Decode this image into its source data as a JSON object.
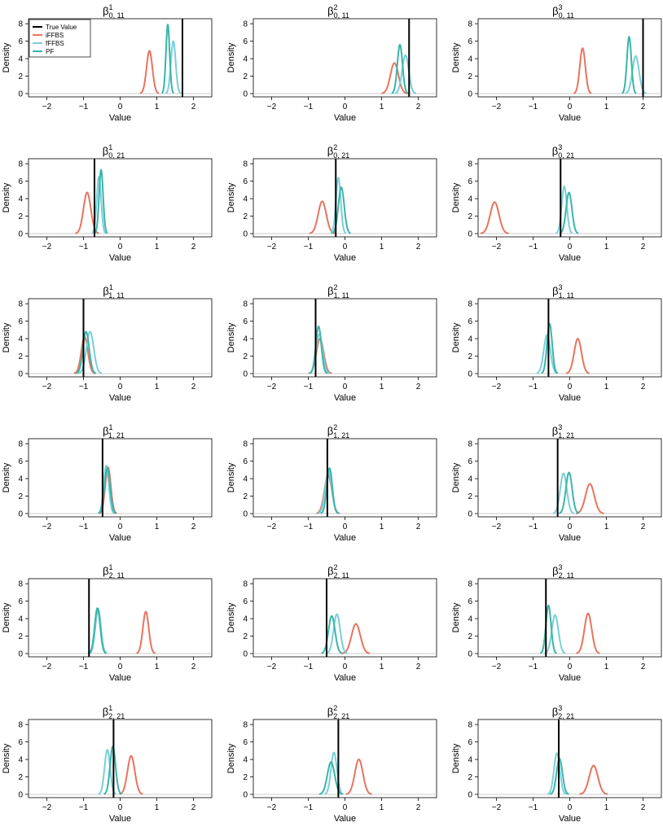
{
  "axis_defaults": {
    "xlabel": "Value",
    "ylabel": "Density",
    "xlim": [
      -2.5,
      2.5
    ],
    "ylim": [
      0,
      8.2
    ],
    "xticks": [
      -2,
      -1,
      0,
      1,
      2
    ],
    "yticks": [
      0,
      2,
      4,
      6,
      8
    ]
  },
  "legend": {
    "placement": "top-left",
    "entries": [
      {
        "label": "True Value",
        "color": "#000000"
      },
      {
        "label": "iFFBS",
        "color": "#e8735f"
      },
      {
        "label": "fFFBS",
        "color": "#79cfdb"
      },
      {
        "label": "PF",
        "color": "#3ab5a8"
      }
    ]
  },
  "chart_data": [
    {
      "type": "line",
      "title": {
        "base": "β",
        "sup": "1",
        "sub": "0, 11"
      },
      "true_value": 1.7,
      "series": [
        {
          "name": "iFFBS",
          "mean": 0.8,
          "sd": 0.08,
          "peak": 4.9
        },
        {
          "name": "fFFBS",
          "mean": 1.45,
          "sd": 0.065,
          "peak": 6.0
        },
        {
          "name": "PF",
          "mean": 1.3,
          "sd": 0.05,
          "peak": 7.9
        }
      ]
    },
    {
      "type": "line",
      "title": {
        "base": "β",
        "sup": "2",
        "sub": "0, 11"
      },
      "true_value": 1.75,
      "series": [
        {
          "name": "iFFBS",
          "mean": 1.35,
          "sd": 0.11,
          "peak": 3.5
        },
        {
          "name": "fFFBS",
          "mean": 1.65,
          "sd": 0.09,
          "peak": 4.4
        },
        {
          "name": "PF",
          "mean": 1.5,
          "sd": 0.07,
          "peak": 5.6
        }
      ]
    },
    {
      "type": "line",
      "title": {
        "base": "β",
        "sup": "3",
        "sub": "0, 11"
      },
      "true_value": 2.0,
      "series": [
        {
          "name": "iFFBS",
          "mean": 0.35,
          "sd": 0.075,
          "peak": 5.2
        },
        {
          "name": "fFFBS",
          "mean": 1.8,
          "sd": 0.09,
          "peak": 4.3
        },
        {
          "name": "PF",
          "mean": 1.62,
          "sd": 0.06,
          "peak": 6.5
        }
      ]
    },
    {
      "type": "line",
      "title": {
        "base": "β",
        "sup": "1",
        "sub": "0, 21"
      },
      "true_value": -0.7,
      "series": [
        {
          "name": "iFFBS",
          "mean": -0.9,
          "sd": 0.1,
          "peak": 4.7
        },
        {
          "name": "fFFBS",
          "mean": -0.58,
          "sd": 0.06,
          "peak": 6.5
        },
        {
          "name": "PF",
          "mean": -0.52,
          "sd": 0.055,
          "peak": 7.3
        }
      ]
    },
    {
      "type": "line",
      "title": {
        "base": "β",
        "sup": "2",
        "sub": "0, 21"
      },
      "true_value": -0.25,
      "series": [
        {
          "name": "iFFBS",
          "mean": -0.62,
          "sd": 0.11,
          "peak": 3.7
        },
        {
          "name": "fFFBS",
          "mean": -0.18,
          "sd": 0.065,
          "peak": 6.4
        },
        {
          "name": "PF",
          "mean": -0.1,
          "sd": 0.08,
          "peak": 5.3
        }
      ]
    },
    {
      "type": "line",
      "title": {
        "base": "β",
        "sup": "3",
        "sub": "0, 21"
      },
      "true_value": -0.25,
      "series": [
        {
          "name": "iFFBS",
          "mean": -2.05,
          "sd": 0.12,
          "peak": 3.6
        },
        {
          "name": "fFFBS",
          "mean": -0.15,
          "sd": 0.07,
          "peak": 5.4
        },
        {
          "name": "PF",
          "mean": -0.02,
          "sd": 0.08,
          "peak": 4.7
        }
      ]
    },
    {
      "type": "line",
      "title": {
        "base": "β",
        "sup": "1",
        "sub": "1, 11"
      },
      "true_value": -1.0,
      "series": [
        {
          "name": "iFFBS",
          "mean": -0.97,
          "sd": 0.09,
          "peak": 4.2
        },
        {
          "name": "fFFBS",
          "mean": -0.82,
          "sd": 0.1,
          "peak": 4.8
        },
        {
          "name": "PF",
          "mean": -0.93,
          "sd": 0.085,
          "peak": 4.8
        }
      ]
    },
    {
      "type": "line",
      "title": {
        "base": "β",
        "sup": "2",
        "sub": "1, 11"
      },
      "true_value": -0.8,
      "series": [
        {
          "name": "iFFBS",
          "mean": -0.68,
          "sd": 0.1,
          "peak": 4.0
        },
        {
          "name": "fFFBS",
          "mean": -0.7,
          "sd": 0.09,
          "peak": 4.5
        },
        {
          "name": "PF",
          "mean": -0.72,
          "sd": 0.075,
          "peak": 5.4
        }
      ]
    },
    {
      "type": "line",
      "title": {
        "base": "β",
        "sup": "3",
        "sub": "1, 11"
      },
      "true_value": -0.58,
      "series": [
        {
          "name": "iFFBS",
          "mean": 0.22,
          "sd": 0.1,
          "peak": 4.0
        },
        {
          "name": "fFFBS",
          "mean": -0.62,
          "sd": 0.09,
          "peak": 4.4
        },
        {
          "name": "PF",
          "mean": -0.55,
          "sd": 0.07,
          "peak": 5.7
        }
      ]
    },
    {
      "type": "line",
      "title": {
        "base": "β",
        "sup": "1",
        "sub": "1, 21"
      },
      "true_value": -0.48,
      "series": [
        {
          "name": "iFFBS",
          "mean": -0.33,
          "sd": 0.075,
          "peak": 5.3
        },
        {
          "name": "fFFBS",
          "mean": -0.38,
          "sd": 0.07,
          "peak": 5.5
        },
        {
          "name": "PF",
          "mean": -0.35,
          "sd": 0.075,
          "peak": 5.2
        }
      ]
    },
    {
      "type": "line",
      "title": {
        "base": "β",
        "sup": "2",
        "sub": "1, 21"
      },
      "true_value": -0.48,
      "series": [
        {
          "name": "iFFBS",
          "mean": -0.46,
          "sd": 0.1,
          "peak": 4.4
        },
        {
          "name": "fFFBS",
          "mean": -0.45,
          "sd": 0.09,
          "peak": 4.8
        },
        {
          "name": "PF",
          "mean": -0.42,
          "sd": 0.075,
          "peak": 5.2
        }
      ]
    },
    {
      "type": "line",
      "title": {
        "base": "β",
        "sup": "3",
        "sub": "1, 21"
      },
      "true_value": -0.33,
      "series": [
        {
          "name": "iFFBS",
          "mean": 0.55,
          "sd": 0.12,
          "peak": 3.4
        },
        {
          "name": "fFFBS",
          "mean": -0.17,
          "sd": 0.09,
          "peak": 4.6
        },
        {
          "name": "PF",
          "mean": -0.02,
          "sd": 0.085,
          "peak": 4.7
        }
      ]
    },
    {
      "type": "line",
      "title": {
        "base": "β",
        "sup": "1",
        "sub": "2, 11"
      },
      "true_value": -0.85,
      "series": [
        {
          "name": "iFFBS",
          "mean": 0.7,
          "sd": 0.08,
          "peak": 4.8
        },
        {
          "name": "fFFBS",
          "mean": -0.6,
          "sd": 0.075,
          "peak": 5.1
        },
        {
          "name": "PF",
          "mean": -0.62,
          "sd": 0.075,
          "peak": 5.2
        }
      ]
    },
    {
      "type": "line",
      "title": {
        "base": "β",
        "sup": "2",
        "sub": "2, 11"
      },
      "true_value": -0.5,
      "series": [
        {
          "name": "iFFBS",
          "mean": 0.3,
          "sd": 0.12,
          "peak": 3.4
        },
        {
          "name": "fFFBS",
          "mean": -0.22,
          "sd": 0.09,
          "peak": 4.5
        },
        {
          "name": "PF",
          "mean": -0.36,
          "sd": 0.09,
          "peak": 4.3
        }
      ]
    },
    {
      "type": "line",
      "title": {
        "base": "β",
        "sup": "3",
        "sub": "2, 11"
      },
      "true_value": -0.65,
      "series": [
        {
          "name": "iFFBS",
          "mean": 0.5,
          "sd": 0.1,
          "peak": 4.6
        },
        {
          "name": "fFFBS",
          "mean": -0.4,
          "sd": 0.09,
          "peak": 4.4
        },
        {
          "name": "PF",
          "mean": -0.58,
          "sd": 0.07,
          "peak": 5.5
        }
      ]
    },
    {
      "type": "line",
      "title": {
        "base": "β",
        "sup": "1",
        "sub": "2, 21"
      },
      "true_value": -0.18,
      "series": [
        {
          "name": "iFFBS",
          "mean": 0.3,
          "sd": 0.1,
          "peak": 4.4
        },
        {
          "name": "fFFBS",
          "mean": -0.35,
          "sd": 0.075,
          "peak": 5.1
        },
        {
          "name": "PF",
          "mean": -0.2,
          "sd": 0.075,
          "peak": 5.5
        }
      ]
    },
    {
      "type": "line",
      "title": {
        "base": "β",
        "sup": "2",
        "sub": "2, 21"
      },
      "true_value": -0.18,
      "series": [
        {
          "name": "iFFBS",
          "mean": 0.38,
          "sd": 0.11,
          "peak": 4.0
        },
        {
          "name": "fFFBS",
          "mean": -0.3,
          "sd": 0.08,
          "peak": 4.8
        },
        {
          "name": "PF",
          "mean": -0.38,
          "sd": 0.1,
          "peak": 3.7
        }
      ]
    },
    {
      "type": "line",
      "title": {
        "base": "β",
        "sup": "3",
        "sub": "2, 21"
      },
      "true_value": -0.3,
      "series": [
        {
          "name": "iFFBS",
          "mean": 0.65,
          "sd": 0.12,
          "peak": 3.3
        },
        {
          "name": "fFFBS",
          "mean": -0.35,
          "sd": 0.08,
          "peak": 4.7
        },
        {
          "name": "PF",
          "mean": -0.28,
          "sd": 0.08,
          "peak": 4.1
        }
      ]
    }
  ]
}
